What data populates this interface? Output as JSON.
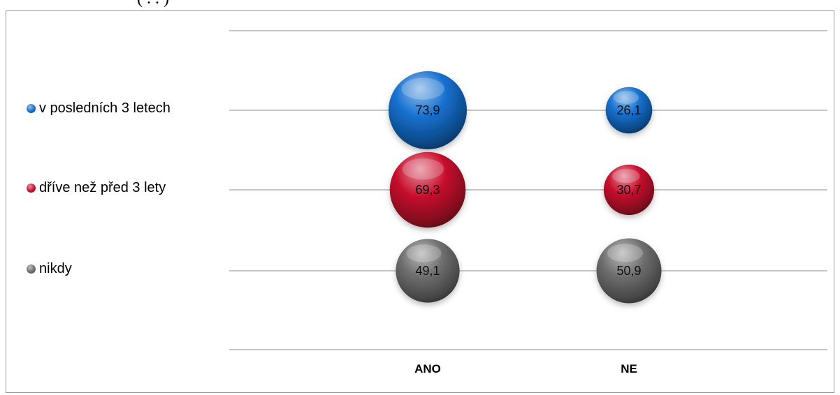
{
  "header_fragment": "( . . )",
  "chart_data": {
    "type": "bubble",
    "categories": [
      "ANO",
      "NE"
    ],
    "series": [
      {
        "name": "v posledních 3 letech",
        "values": [
          73.9,
          26.1
        ],
        "labels": [
          "73,9",
          "26,1"
        ],
        "color": "#1570d0"
      },
      {
        "name": "dříve než před 3 lety",
        "values": [
          69.3,
          30.7
        ],
        "labels": [
          "69,3",
          "30,7"
        ],
        "color": "#c8102e"
      },
      {
        "name": "nikdy",
        "values": [
          49.1,
          50.9
        ],
        "labels": [
          "49,1",
          "50,9"
        ],
        "color": "#6f6f6f"
      }
    ],
    "legend_position": "left",
    "grid": true
  }
}
